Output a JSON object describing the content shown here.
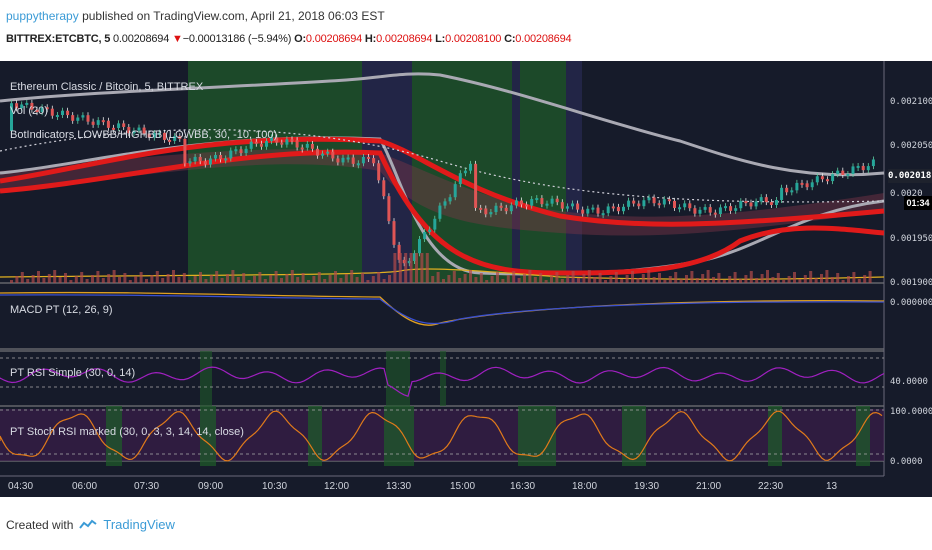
{
  "header": {
    "publisher": "puppytherapy",
    "published_text": "published on TradingView.com, April 21, 2018 06:03 EST"
  },
  "quote": {
    "symbol": "BITTREX:ETCBTC, 5",
    "last": "0.00208694",
    "change_arrow": "▼",
    "change": "−0.00013186 (−5.94%)",
    "o_label": "O:",
    "o": "0.00208694",
    "h_label": "H:",
    "h": "0.00208694",
    "l_label": "L:",
    "l": "0.00208100",
    "c_label": "C:",
    "c": "0.00208694"
  },
  "panes": {
    "main_title": "Ethereum Classic / Bitcoin, 5, BITTREX",
    "vol": "Vol (20)",
    "bot": "BotIndicators LOWBB/HIGHBB (LOWBB, 30, -10, 100)",
    "macd": "MACD PT (12, 26, 9)",
    "rsi": "PT RSI Simple (30, 0, 14)",
    "stoch": "PT Stoch RSI marked (30, 0, 3, 3, 14, 14, close)"
  },
  "price_axis": {
    "main": [
      "0.00210000",
      "0.00205000",
      "0.0020",
      "0.00195000",
      "0.00190000"
    ],
    "last_tag": "0.00201819",
    "countdown": "01:34",
    "macd": "0.00000000",
    "rsi": "40.0000",
    "stoch_top": "100.0000",
    "stoch_bottom": "0.0000"
  },
  "time_axis": [
    "04:30",
    "06:00",
    "07:30",
    "09:00",
    "10:30",
    "12:00",
    "13:30",
    "15:00",
    "16:30",
    "18:00",
    "19:30",
    "21:00",
    "22:30",
    "13"
  ],
  "footer": {
    "created_with": "Created with",
    "brand": "TradingView"
  },
  "colors": {
    "background": "#161b2a",
    "green_zone": "#1f5a2a",
    "bollinger_red": "#e01a1a",
    "envelope_gray": "#a9a9b3",
    "rsi_purple": "#a020c0",
    "stoch_orange": "#e07a1a"
  }
}
